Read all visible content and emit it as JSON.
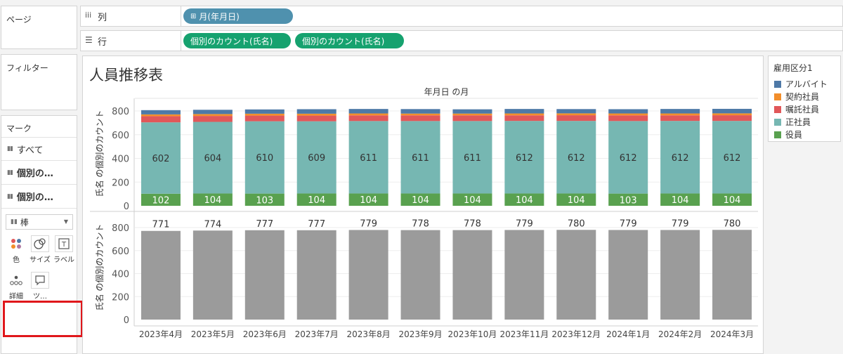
{
  "pages_panel": {
    "title": "ページ"
  },
  "filters_panel": {
    "title": "フィルター"
  },
  "marks_panel": {
    "title": "マーク",
    "rows": [
      {
        "label": "すべて"
      },
      {
        "label": "個別の…"
      },
      {
        "label": "個別の…"
      }
    ],
    "mark_type": "棒",
    "tiles": [
      {
        "label": "色",
        "icon": "color-icon"
      },
      {
        "label": "サイズ",
        "icon": "size-icon"
      },
      {
        "label": "ラベル",
        "icon": "label-icon"
      },
      {
        "label": "詳細",
        "icon": "detail-icon"
      },
      {
        "label": "ツ…",
        "icon": "tooltip-icon"
      }
    ]
  },
  "shelves": {
    "columns_label": "列",
    "rows_label": "行",
    "columns_pill": "月(年月日)",
    "rows_pills": [
      "個別のカウント(氏名)",
      "個別のカウント(氏名)"
    ]
  },
  "viz": {
    "title": "人員推移表",
    "header": "年月日 の月"
  },
  "legend": {
    "title": "雇用区分1",
    "items": [
      {
        "label": "アルバイト",
        "color": "#4e79a7"
      },
      {
        "label": "契約社員",
        "color": "#f28e2b"
      },
      {
        "label": "嘱託社員",
        "color": "#e15759"
      },
      {
        "label": "正社員",
        "color": "#76b7b2"
      },
      {
        "label": "役員",
        "color": "#59a14f"
      }
    ]
  },
  "chart_data": [
    {
      "type": "bar",
      "stacked": true,
      "ylabel": "氏名 の個別のカウント",
      "ylim": [
        0,
        880
      ],
      "yticks": [
        0,
        200,
        400,
        600,
        800
      ],
      "categories": [
        "2023年4月",
        "2023年5月",
        "2023年6月",
        "2023年7月",
        "2023年8月",
        "2023年9月",
        "2023年10月",
        "2023年11月",
        "2023年12月",
        "2024年1月",
        "2024年2月",
        "2024年3月"
      ],
      "series": [
        {
          "name": "役員",
          "color": "#59a14f",
          "values": [
            102,
            104,
            103,
            104,
            104,
            104,
            104,
            104,
            104,
            103,
            104,
            104
          ]
        },
        {
          "name": "正社員",
          "color": "#76b7b2",
          "values": [
            602,
            604,
            610,
            609,
            611,
            611,
            611,
            612,
            612,
            612,
            612,
            612
          ]
        },
        {
          "name": "嘱託社員",
          "color": "#e15759",
          "values": [
            52,
            50,
            48,
            48,
            48,
            48,
            48,
            47,
            48,
            48,
            47,
            48
          ]
        },
        {
          "name": "契約社員",
          "color": "#f28e2b",
          "values": [
            15,
            16,
            16,
            16,
            16,
            15,
            15,
            16,
            16,
            16,
            16,
            16
          ]
        },
        {
          "name": "アルバイト",
          "color": "#4e79a7",
          "values": [
            36,
            36,
            36,
            38,
            38,
            38,
            36,
            38,
            36,
            36,
            38,
            38
          ]
        }
      ],
      "labeled_series": [
        "役員",
        "正社員"
      ]
    },
    {
      "type": "bar",
      "ylabel": "氏名 の個別のカウント",
      "ylim": [
        0,
        880
      ],
      "yticks": [
        0,
        200,
        400,
        600,
        800
      ],
      "categories": [
        "2023年4月",
        "2023年5月",
        "2023年6月",
        "2023年7月",
        "2023年8月",
        "2023年9月",
        "2023年10月",
        "2023年11月",
        "2023年12月",
        "2024年1月",
        "2024年2月",
        "2024年3月"
      ],
      "color": "#9b9b9b",
      "values": [
        771,
        774,
        777,
        777,
        779,
        778,
        778,
        779,
        780,
        779,
        779,
        780
      ]
    }
  ]
}
